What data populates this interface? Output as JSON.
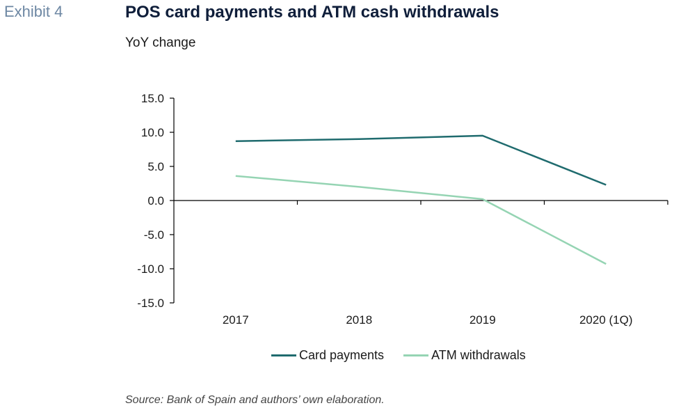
{
  "header": {
    "exhibit_label": "Exhibit 4",
    "title": "POS card payments and ATM cash withdrawals",
    "subtitle": "YoY change"
  },
  "footer": {
    "source": "Source: Bank of Spain and authors’ own elaboration."
  },
  "chart_data": {
    "type": "line",
    "title": "POS card payments and ATM cash withdrawals",
    "subtitle": "YoY change",
    "categories": [
      "2017",
      "2018",
      "2019",
      "2020 (1Q)"
    ],
    "series": [
      {
        "name": "Card payments",
        "values": [
          8.7,
          9.0,
          9.5,
          2.3
        ],
        "color": "#1f6b6e"
      },
      {
        "name": "ATM withdrawals",
        "values": [
          3.6,
          2.0,
          0.2,
          -9.3
        ],
        "color": "#95d4b3"
      }
    ],
    "ylim": [
      -15,
      15
    ],
    "yticks": [
      "15.0",
      "10.0",
      "5.0",
      "0.0",
      "-5.0",
      "-10.0",
      "-15.0"
    ],
    "xlabel": "",
    "ylabel": "",
    "grid": false,
    "legend_position": "bottom"
  }
}
